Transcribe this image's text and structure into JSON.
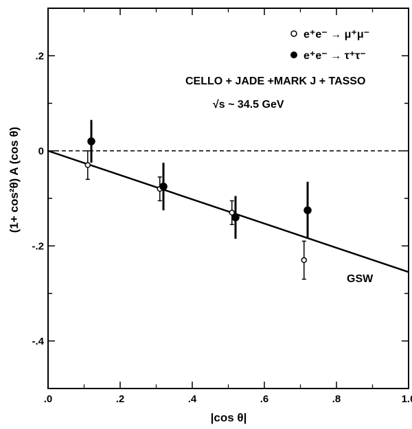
{
  "chart_data": {
    "type": "scatter",
    "xlabel": "|cos θ|",
    "ylabel": "(1+ cos²θ)  A (cos θ)",
    "xlim": [
      0.0,
      1.0
    ],
    "ylim": [
      -0.5,
      0.3
    ],
    "x_ticks": [
      0.0,
      0.2,
      0.4,
      0.6,
      0.8,
      1.0
    ],
    "x_tick_labels": [
      ".0",
      ".2",
      ".4",
      ".6",
      ".8",
      "1.0"
    ],
    "y_ticks": [
      0.2,
      0.0,
      -0.2,
      -0.4
    ],
    "y_tick_labels": [
      ".2",
      "0",
      "-.2",
      "-.4"
    ],
    "grid": false,
    "legend_position": "top-right",
    "series": [
      {
        "name": "e⁺e⁻ → μ⁺μ⁻",
        "marker": "open-circle",
        "points": [
          {
            "x": 0.11,
            "y": -0.03,
            "err": 0.03
          },
          {
            "x": 0.31,
            "y": -0.08,
            "err": 0.025
          },
          {
            "x": 0.51,
            "y": -0.13,
            "err": 0.025
          },
          {
            "x": 0.71,
            "y": -0.23,
            "err": 0.04
          }
        ]
      },
      {
        "name": "e⁺e⁻ → τ⁺τ⁻",
        "marker": "filled-circle",
        "points": [
          {
            "x": 0.12,
            "y": 0.02,
            "err": 0.045
          },
          {
            "x": 0.32,
            "y": -0.075,
            "err": 0.05
          },
          {
            "x": 0.52,
            "y": -0.14,
            "err": 0.045
          },
          {
            "x": 0.72,
            "y": -0.125,
            "err": 0.06
          }
        ]
      }
    ],
    "lines": [
      {
        "name": "GSW",
        "style": "solid",
        "x": [
          0.0,
          1.0
        ],
        "y": [
          0.0,
          -0.255
        ]
      },
      {
        "name": "zero",
        "style": "dashed",
        "x": [
          0.0,
          1.0
        ],
        "y": [
          0.0,
          0.0
        ]
      }
    ],
    "annotations": {
      "experiments": "CELLO + JADE +MARK J + TASSO",
      "energy": "√s ~ 34.5 GeV",
      "curve_label": "GSW"
    }
  }
}
